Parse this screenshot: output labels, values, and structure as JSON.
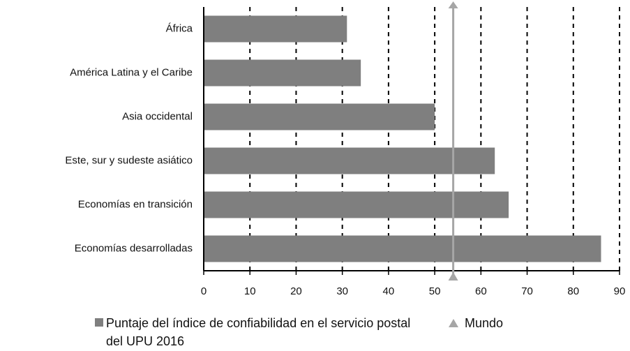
{
  "chart_data": {
    "type": "bar",
    "orientation": "horizontal",
    "categories": [
      "África",
      "América Latina y el Caribe",
      "Asia occidental",
      "Este, sur y sudeste asiático",
      "Economías en transición",
      "Economías desarrolladas"
    ],
    "series": [
      {
        "name": "Puntaje del índice de confiabilidad en el servicio postal del UPU 2016",
        "color": "#7f7f7f",
        "values": [
          31,
          34,
          50,
          63,
          66,
          86
        ]
      }
    ],
    "reference": {
      "name": "Mundo",
      "value": 54,
      "color": "#a6a6a6"
    },
    "xlim": [
      0,
      90
    ],
    "xticks": [
      0,
      10,
      20,
      30,
      40,
      50,
      60,
      70,
      80,
      90
    ],
    "grid": true
  }
}
